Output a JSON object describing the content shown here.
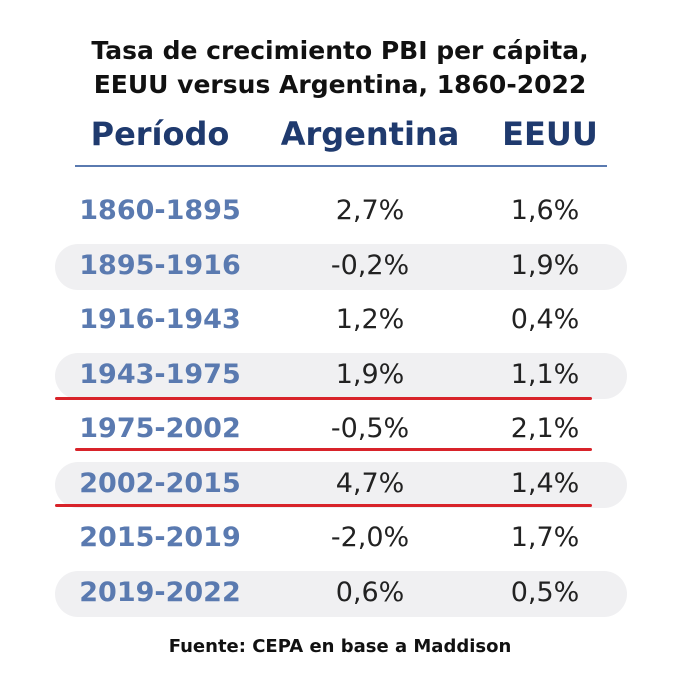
{
  "header": {
    "title_lines": [
      "Tasa de crecimiento PBI per cápita,",
      "EEUU versus Argentina, 1860-2022"
    ]
  },
  "table": {
    "columns": [
      "Período",
      "Argentina",
      "EEUU"
    ],
    "rows": [
      [
        "1860-1895",
        "2,7%",
        "1,6%"
      ],
      [
        "1895-1916",
        "-0,2%",
        "1,9%"
      ],
      [
        "1916-1943",
        "1,2%",
        "0,4%"
      ],
      [
        "1943-1975",
        "1,9%",
        "1,1%"
      ],
      [
        "1975-2002",
        "-0,5%",
        "2,1%"
      ],
      [
        "2002-2015",
        "4,7%",
        "1,4%"
      ],
      [
        "2015-2019",
        "-2,0%",
        "1,7%"
      ],
      [
        "2019-2022",
        "0,6%",
        "0,5%"
      ]
    ]
  },
  "footer": {
    "source": "Fuente: CEPA en base a Maddison"
  }
}
